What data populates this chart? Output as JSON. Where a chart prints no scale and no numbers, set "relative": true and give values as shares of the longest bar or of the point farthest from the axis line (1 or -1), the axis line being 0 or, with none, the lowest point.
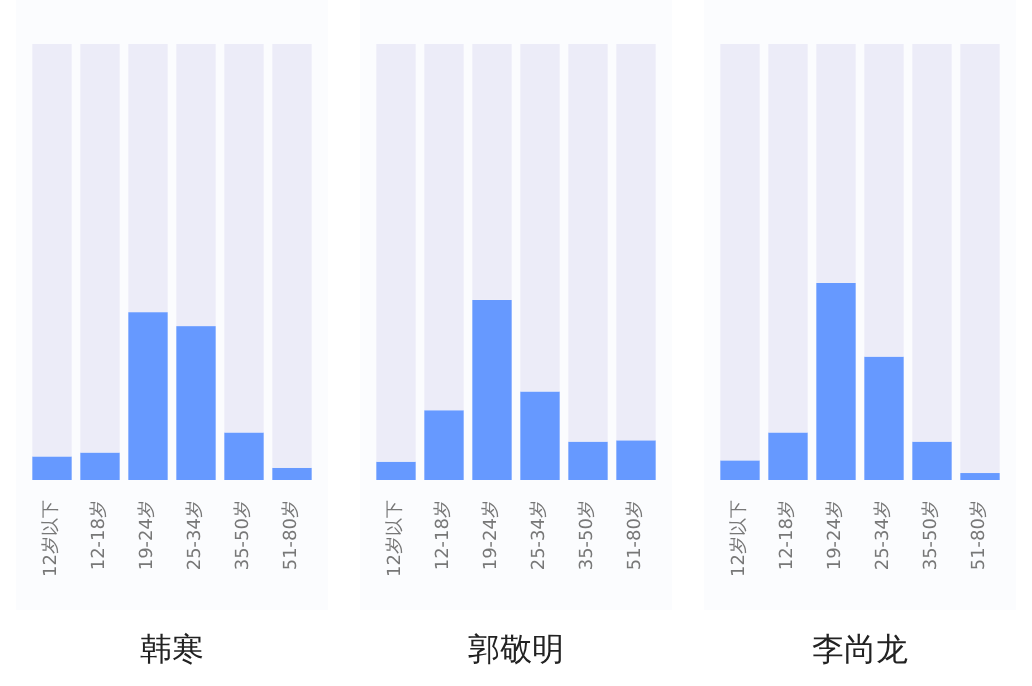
{
  "chart_data": [
    {
      "type": "bar",
      "title": "韩寒",
      "categories": [
        "12岁以下",
        "12-18岁",
        "19-24岁",
        "25-34岁",
        "35-50岁",
        "51-80岁"
      ],
      "stacked": true,
      "relative": true,
      "series": [
        {
          "color": "#6699ff",
          "values": [
            0.054,
            0.063,
            0.385,
            0.353,
            0.109,
            0.028
          ]
        },
        {
          "color": "#ececf8",
          "values": [
            0.946,
            0.937,
            0.615,
            0.647,
            0.891,
            0.972
          ]
        }
      ]
    },
    {
      "type": "bar",
      "title": "郭敬明",
      "categories": [
        "12岁以下",
        "12-18岁",
        "19-24岁",
        "25-34岁",
        "35-50岁",
        "51-80岁"
      ],
      "stacked": true,
      "relative": true,
      "series": [
        {
          "color": "#6699ff",
          "values": [
            0.042,
            0.16,
            0.413,
            0.203,
            0.088,
            0.091
          ]
        },
        {
          "color": "#ececf8",
          "values": [
            0.958,
            0.84,
            0.587,
            0.797,
            0.912,
            0.909
          ]
        }
      ]
    },
    {
      "type": "bar",
      "title": "李尚龙",
      "categories": [
        "12岁以下",
        "12-18岁",
        "19-24岁",
        "25-34岁",
        "35-50岁",
        "51-80岁"
      ],
      "stacked": true,
      "relative": true,
      "series": [
        {
          "color": "#6699ff",
          "values": [
            0.045,
            0.109,
            0.452,
            0.283,
            0.088,
            0.016
          ]
        },
        {
          "color": "#ececf8",
          "values": [
            0.955,
            0.891,
            0.548,
            0.717,
            0.912,
            0.984
          ]
        }
      ]
    }
  ]
}
